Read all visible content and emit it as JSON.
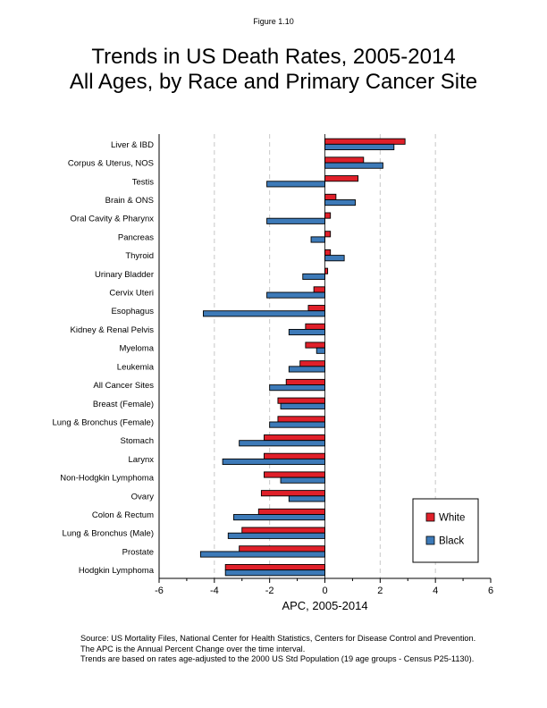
{
  "figure_label": "Figure 1.10",
  "title_line1": "Trends in US Death Rates, 2005-2014",
  "title_line2": "All Ages, by Race and Primary Cancer Site",
  "footer": [
    "Source: US Mortality Files, National Center for Health Statistics, Centers for Disease Control and Prevention.",
    "The APC is the Annual Percent Change over the time interval.",
    "Trends are based on rates age-adjusted to the 2000 US Std Population (19 age groups - Census P25-1130)."
  ],
  "chart_data": {
    "type": "bar",
    "orientation": "horizontal",
    "title": "Trends in US Death Rates, 2005-2014 All Ages, by Race and Primary Cancer Site",
    "xlabel": "APC, 2005-2014",
    "ylabel": "",
    "xlim": [
      -6,
      6
    ],
    "xticks": [
      -6,
      -4,
      -2,
      0,
      2,
      4,
      6
    ],
    "grid": "vertical dashed at -4, -2, 2, 4",
    "legend_position": "bottom-right",
    "categories": [
      "Liver & IBD",
      "Corpus & Uterus, NOS",
      "Testis",
      "Brain & ONS",
      "Oral Cavity & Pharynx",
      "Pancreas",
      "Thyroid",
      "Urinary Bladder",
      "Cervix Uteri",
      "Esophagus",
      "Kidney & Renal Pelvis",
      "Myeloma",
      "Leukemia",
      "All Cancer Sites",
      "Breast (Female)",
      "Lung & Bronchus (Female)",
      "Stomach",
      "Larynx",
      "Non-Hodgkin Lymphoma",
      "Ovary",
      "Colon & Rectum",
      "Lung & Bronchus (Male)",
      "Prostate",
      "Hodgkin Lymphoma"
    ],
    "series": [
      {
        "name": "White",
        "color": "#e0202a",
        "values": [
          2.9,
          1.4,
          1.2,
          0.4,
          0.2,
          0.2,
          0.2,
          0.1,
          -0.4,
          -0.6,
          -0.7,
          -0.7,
          -0.9,
          -1.4,
          -1.7,
          -1.7,
          -2.2,
          -2.2,
          -2.2,
          -2.3,
          -2.4,
          -3.0,
          -3.1,
          -3.6
        ]
      },
      {
        "name": "Black",
        "color": "#3d7ab8",
        "values": [
          2.5,
          2.1,
          -2.1,
          1.1,
          -2.1,
          -0.5,
          0.7,
          -0.8,
          -2.1,
          -4.4,
          -1.3,
          -0.3,
          -1.3,
          -2.0,
          -1.6,
          -2.0,
          -3.1,
          -3.7,
          -1.6,
          -1.3,
          -3.3,
          -3.5,
          -4.5,
          -3.6
        ]
      }
    ]
  }
}
